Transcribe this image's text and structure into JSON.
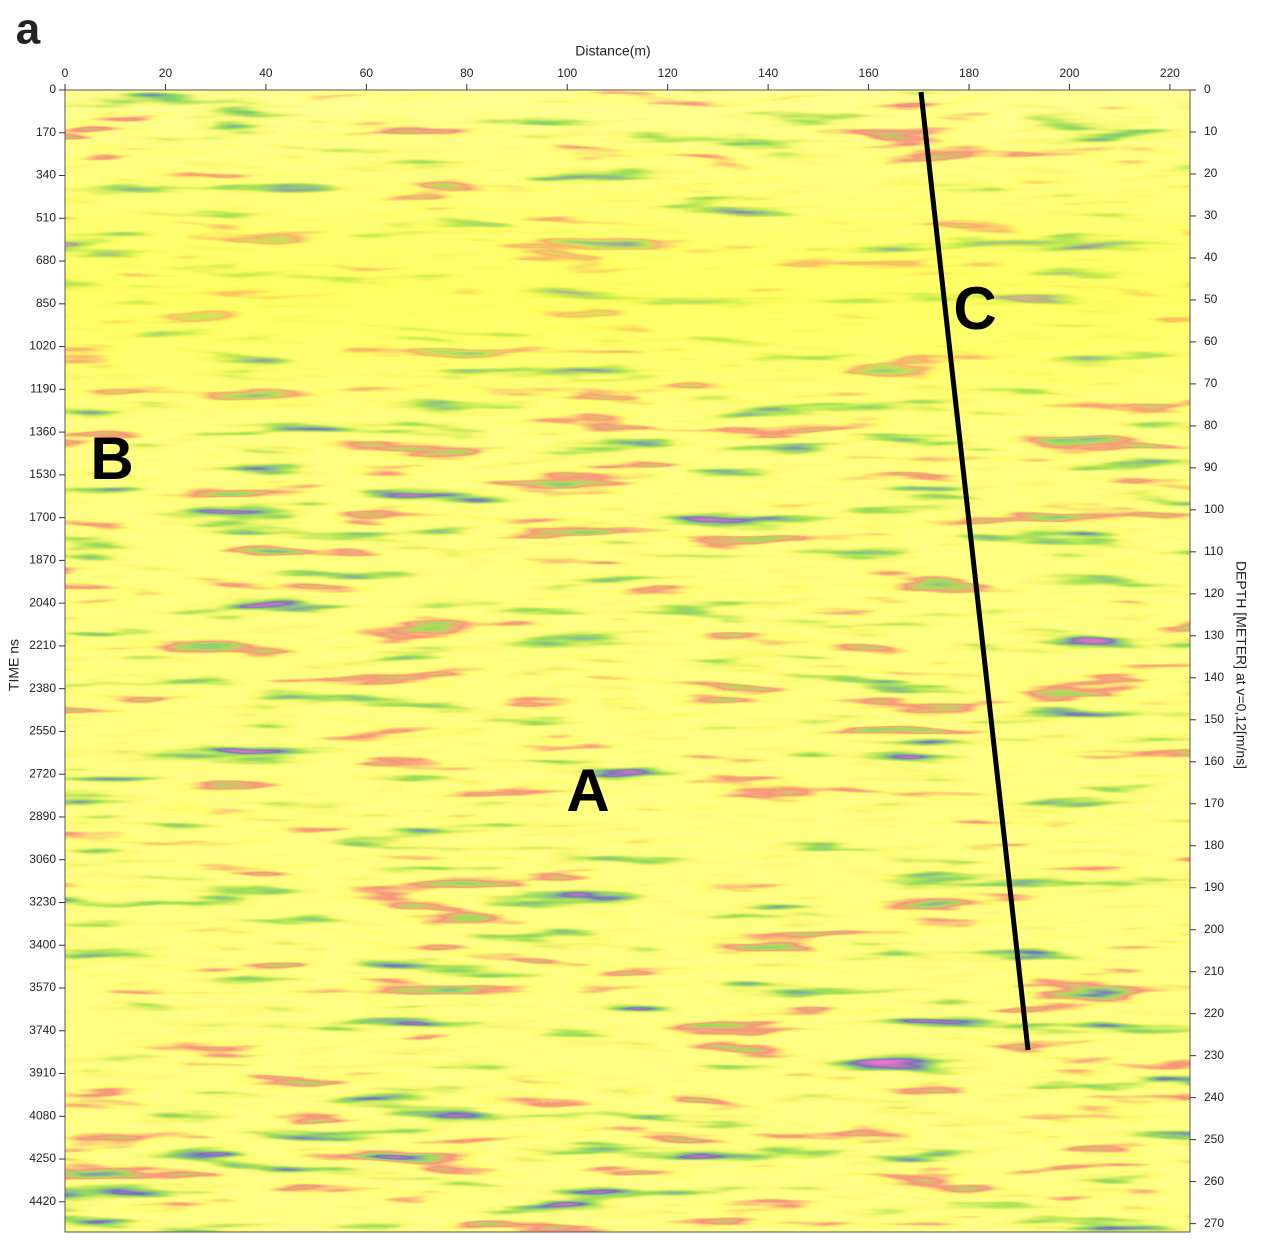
{
  "chart_data": {
    "type": "radargram",
    "title": "a",
    "xlabel": "Distance(m)",
    "ylabel": "TIME ns",
    "y2label": "DEPTH [METER] at v=0,12[m/ns]",
    "xlim": [
      0,
      224
    ],
    "xticks": [
      0,
      20,
      40,
      60,
      80,
      100,
      120,
      140,
      160,
      180,
      200,
      220
    ],
    "ylim": [
      0,
      4540
    ],
    "y_inverted": true,
    "yticks": [
      0,
      170,
      340,
      510,
      680,
      850,
      1020,
      1190,
      1360,
      1530,
      1700,
      1870,
      2040,
      2210,
      2380,
      2550,
      2720,
      2890,
      3060,
      3230,
      3400,
      3570,
      3740,
      3910,
      4080,
      4250,
      4420
    ],
    "y2lim": [
      0,
      272
    ],
    "y2ticks": [
      0,
      10,
      20,
      30,
      40,
      50,
      60,
      70,
      80,
      90,
      100,
      110,
      120,
      130,
      140,
      150,
      160,
      170,
      180,
      190,
      200,
      210,
      220,
      230,
      240,
      250,
      260,
      270
    ],
    "annotations": [
      "A",
      "B",
      "C"
    ]
  }
}
